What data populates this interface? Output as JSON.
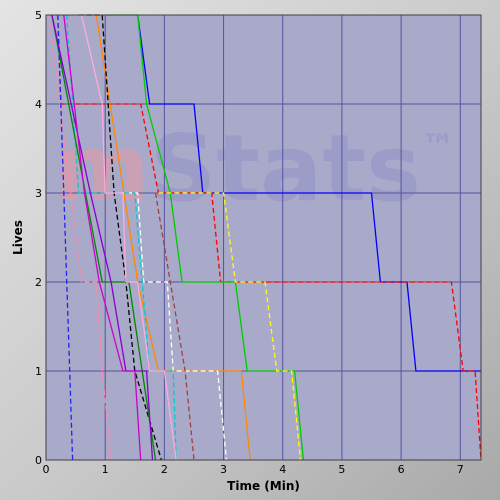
{
  "chart_data": {
    "type": "line",
    "xlabel": "Time (Min)",
    "ylabel": "Lives",
    "xlim": [
      0,
      7.35
    ],
    "ylim": [
      0,
      5
    ],
    "x_ticks": [
      "0",
      "1",
      "2",
      "3",
      "4",
      "5",
      "6",
      "7"
    ],
    "y_ticks": [
      "0",
      "1",
      "2",
      "3",
      "4",
      "5"
    ],
    "grid": true,
    "background_color": "#a9a9c9",
    "grid_color": "#5454a0",
    "watermark": {
      "prefix": "m",
      "main": "Stats",
      "mark": "™"
    },
    "series": [
      {
        "color": "#0000ff",
        "dashed": false,
        "points": [
          [
            1.55,
            5
          ],
          [
            1.75,
            4
          ],
          [
            2.5,
            4
          ],
          [
            2.65,
            3
          ],
          [
            5.5,
            3
          ],
          [
            5.65,
            2
          ],
          [
            6.1,
            2
          ],
          [
            6.25,
            1
          ],
          [
            7.35,
            1
          ]
        ]
      },
      {
        "color": "#ff0000",
        "dashed": true,
        "points": [
          [
            0.2,
            5
          ],
          [
            0.25,
            4
          ],
          [
            1.6,
            4
          ],
          [
            1.9,
            3
          ],
          [
            2.8,
            3
          ],
          [
            2.95,
            2
          ],
          [
            6.85,
            2
          ],
          [
            7.05,
            1
          ],
          [
            7.25,
            1
          ],
          [
            7.35,
            0
          ]
        ]
      },
      {
        "color": "#00cc00",
        "dashed": false,
        "points": [
          [
            1.0,
            5
          ],
          [
            1.55,
            5
          ],
          [
            1.7,
            4
          ],
          [
            2.1,
            3
          ],
          [
            2.3,
            2
          ],
          [
            3.2,
            2
          ],
          [
            3.4,
            1
          ],
          [
            4.2,
            1
          ],
          [
            4.35,
            0
          ]
        ]
      },
      {
        "color": "#ffff00",
        "dashed": true,
        "points": [
          [
            1.9,
            3
          ],
          [
            3.0,
            3
          ],
          [
            3.2,
            2
          ],
          [
            3.7,
            2
          ],
          [
            3.9,
            1
          ],
          [
            4.15,
            1
          ],
          [
            4.3,
            0
          ]
        ]
      },
      {
        "color": "#ff8800",
        "dashed": false,
        "points": [
          [
            0.75,
            5
          ],
          [
            0.85,
            5
          ],
          [
            1.55,
            2
          ],
          [
            1.9,
            1
          ],
          [
            3.3,
            1
          ],
          [
            3.45,
            0
          ]
        ]
      },
      {
        "color": "#ffffff",
        "dashed": true,
        "points": [
          [
            1.1,
            3
          ],
          [
            1.55,
            3
          ],
          [
            1.65,
            2
          ],
          [
            2.05,
            2
          ],
          [
            2.15,
            1
          ],
          [
            2.9,
            1
          ],
          [
            3.05,
            0
          ]
        ]
      },
      {
        "color": "#a04040",
        "dashed": true,
        "points": [
          [
            1.85,
            3
          ],
          [
            2.1,
            2
          ],
          [
            2.35,
            1
          ],
          [
            2.5,
            0
          ]
        ]
      },
      {
        "color": "#00cccc",
        "dashed": true,
        "points": [
          [
            0.35,
            5
          ],
          [
            0.55,
            3
          ],
          [
            1.5,
            3
          ],
          [
            1.75,
            1
          ],
          [
            2.15,
            1
          ],
          [
            2.2,
            0
          ]
        ]
      },
      {
        "color": "#000000",
        "dashed": true,
        "points": [
          [
            0.55,
            5
          ],
          [
            0.95,
            5
          ],
          [
            1.15,
            3
          ],
          [
            1.35,
            2
          ],
          [
            1.5,
            1
          ],
          [
            1.95,
            0
          ]
        ]
      },
      {
        "color": "#008800",
        "dashed": false,
        "points": [
          [
            0.1,
            5
          ],
          [
            0.95,
            2
          ],
          [
            1.4,
            2
          ],
          [
            1.85,
            0
          ]
        ]
      },
      {
        "color": "#8800cc",
        "dashed": false,
        "points": [
          [
            0.1,
            5
          ],
          [
            0.75,
            3
          ],
          [
            1.1,
            2
          ],
          [
            1.35,
            1
          ],
          [
            1.7,
            1
          ],
          [
            1.8,
            0
          ]
        ]
      },
      {
        "color": "#cc00cc",
        "dashed": false,
        "points": [
          [
            0.3,
            5
          ],
          [
            0.65,
            3
          ],
          [
            0.9,
            2
          ],
          [
            1.3,
            1
          ],
          [
            1.5,
            1
          ],
          [
            1.6,
            0
          ]
        ]
      },
      {
        "color": "#ffaadd",
        "dashed": false,
        "points": [
          [
            0.45,
            5
          ],
          [
            0.6,
            5
          ],
          [
            0.95,
            4
          ],
          [
            1.0,
            3
          ],
          [
            1.3,
            3
          ],
          [
            1.35,
            2
          ],
          [
            1.55,
            2
          ],
          [
            1.75,
            1
          ],
          [
            2.0,
            1
          ],
          [
            2.2,
            0
          ]
        ]
      },
      {
        "color": "#ff88aa",
        "dashed": true,
        "points": [
          [
            0.05,
            5
          ],
          [
            0.6,
            2
          ],
          [
            0.85,
            2
          ],
          [
            0.95,
            1
          ],
          [
            1.1,
            0
          ]
        ]
      },
      {
        "color": "#2222ff",
        "dashed": true,
        "points": [
          [
            0.2,
            5
          ],
          [
            0.3,
            3
          ],
          [
            0.4,
            1
          ],
          [
            0.45,
            0
          ]
        ]
      }
    ]
  }
}
